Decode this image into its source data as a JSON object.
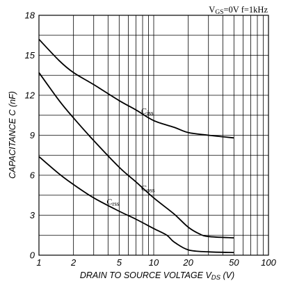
{
  "chart_data": {
    "type": "line",
    "conditions": "VGS=0V  f=1kHz",
    "conditions_parts": {
      "v": "V",
      "gs": "GS",
      "rest": "=0V  f=1kHz"
    },
    "ylabel": "CAPACITANCE  C (nF)",
    "xlabel_main": "DRAIN TO SOURCE VOLTAGE  V",
    "xlabel_sub": "DS",
    "xlabel_unit": " (V)",
    "x_scale": "log",
    "xlim": [
      1,
      100
    ],
    "ylim": [
      0,
      18
    ],
    "grid": true,
    "x_ticks": [
      1,
      2,
      5,
      10,
      20,
      50,
      100
    ],
    "x_tick_labels": [
      "1",
      "2",
      "5",
      "10",
      "20",
      "50",
      "100"
    ],
    "y_ticks": [
      0,
      3,
      6,
      9,
      12,
      15,
      18
    ],
    "y_tick_labels": [
      "0",
      "3",
      "6",
      "9",
      "12",
      "15",
      "18"
    ],
    "series": [
      {
        "name": "Ciss",
        "label_main": "C",
        "label_sub": "iss",
        "x": [
          1,
          1.5,
          2,
          3,
          5,
          7,
          10,
          15,
          20,
          30,
          50
        ],
        "y": [
          16.2,
          14.6,
          13.7,
          12.8,
          11.6,
          10.9,
          10.1,
          9.6,
          9.2,
          9.0,
          8.8
        ]
      },
      {
        "name": "Coss",
        "label_main": "C",
        "label_sub": "oss",
        "x": [
          1,
          1.5,
          2,
          3,
          5,
          7,
          10,
          15,
          20,
          25,
          30,
          50
        ],
        "y": [
          13.7,
          11.6,
          10.3,
          8.6,
          6.6,
          5.5,
          4.3,
          3.1,
          2.1,
          1.6,
          1.4,
          1.3
        ]
      },
      {
        "name": "Crss",
        "label_main": "C",
        "label_sub": "rss",
        "x": [
          1,
          1.5,
          2,
          3,
          5,
          7,
          10,
          13,
          15,
          20,
          30,
          50
        ],
        "y": [
          7.4,
          6.1,
          5.3,
          4.3,
          3.3,
          2.7,
          2.0,
          1.5,
          1.0,
          0.4,
          0.25,
          0.2
        ]
      }
    ]
  }
}
